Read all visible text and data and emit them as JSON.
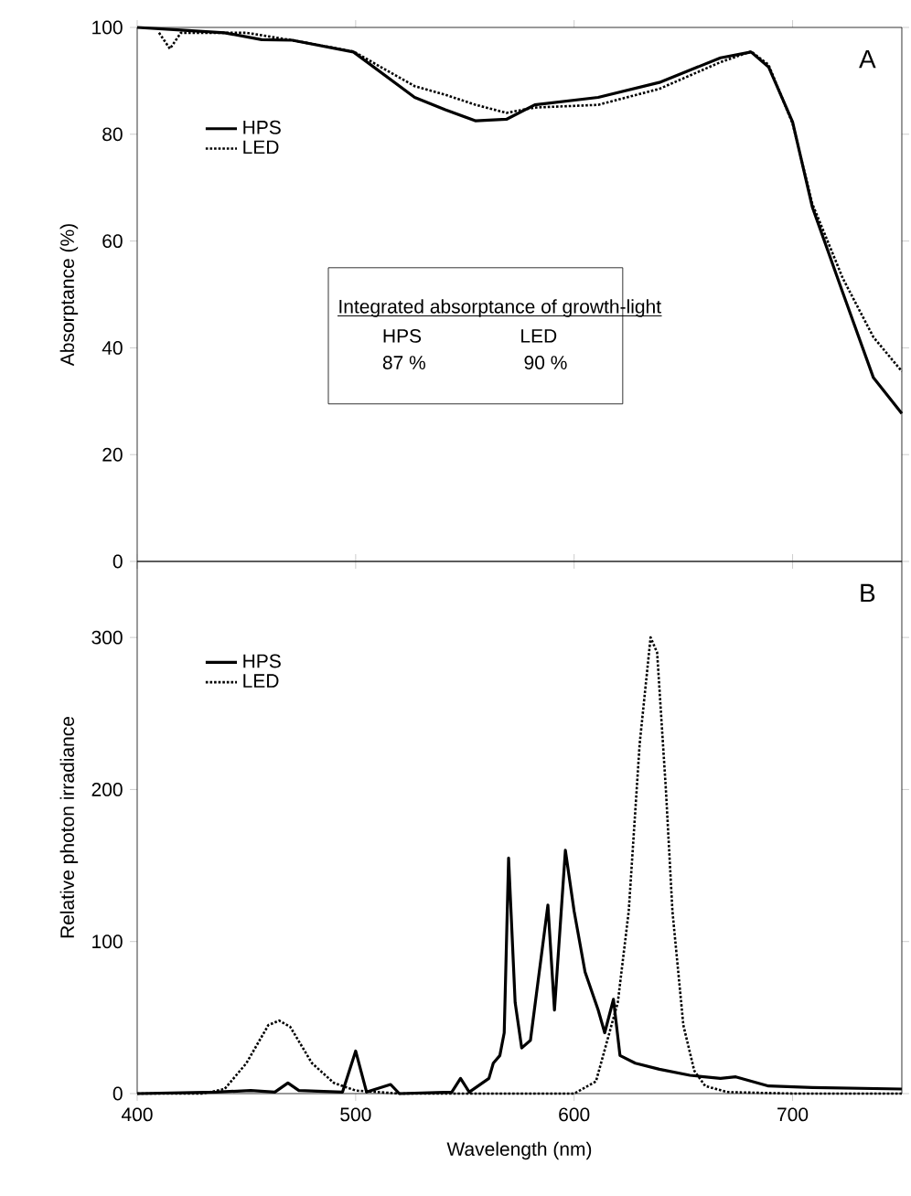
{
  "chart_data": [
    {
      "type": "line",
      "ylabel": "Absorptance (%)",
      "xlim": [
        400,
        750
      ],
      "xticks": [
        400,
        500,
        600,
        700
      ],
      "ylim": [
        0,
        100
      ],
      "yticks": [
        0,
        20,
        40,
        60,
        80,
        100
      ],
      "tick_labels": "y",
      "legend": "top left",
      "annotations": [
        "A",
        "Integrated absorptance of growth-light",
        "HPS",
        "LED",
        "87 %",
        "90 %"
      ],
      "series": [
        {
          "name": "HPS",
          "color": "#000000",
          "line_style": "solid",
          "x": [
            400,
            420,
            440,
            457,
            471,
            499,
            527,
            541,
            555,
            569,
            582,
            611,
            639,
            667,
            681,
            689,
            700,
            709,
            723,
            737,
            750
          ],
          "values": [
            100,
            99.5,
            99,
            97.7,
            97.6,
            95.4,
            86.9,
            84.6,
            82.5,
            82.8,
            85.5,
            86.9,
            89.7,
            94.3,
            95.4,
            92.6,
            82.3,
            66.4,
            50.3,
            34.4,
            27.7
          ]
        },
        {
          "name": "LED",
          "color": "#000000",
          "line_style": "dotted",
          "x": [
            410,
            415,
            420,
            450,
            471,
            499,
            527,
            541,
            555,
            569,
            582,
            611,
            639,
            667,
            681,
            689,
            700,
            709,
            723,
            737,
            750
          ],
          "values": [
            99,
            96,
            99,
            99,
            97.6,
            95.5,
            89,
            87.4,
            85.5,
            84,
            85,
            85.5,
            88.5,
            93.5,
            95.5,
            93,
            82,
            67,
            53,
            42,
            35.6
          ]
        }
      ]
    },
    {
      "type": "line",
      "xlabel": "Wavelength (nm)",
      "ylabel": "Relative photon irradiance",
      "xlim": [
        400,
        750
      ],
      "xticks": [
        400,
        500,
        600,
        700
      ],
      "ylim": [
        0,
        350
      ],
      "yticks": [
        0,
        100,
        200,
        300
      ],
      "legend": "top left",
      "annotations": [
        "B"
      ],
      "series": [
        {
          "name": "HPS",
          "color": "#000000",
          "line_style": "solid",
          "x": [
            400,
            436,
            452,
            463,
            469,
            474,
            494,
            500,
            505,
            516,
            520,
            544,
            548,
            552,
            561,
            563,
            566,
            568,
            570,
            573,
            576,
            580,
            588,
            591,
            596,
            600,
            605,
            611,
            614,
            618,
            621,
            628,
            639,
            653,
            667,
            674,
            689,
            709,
            750
          ],
          "values": [
            0,
            1,
            2,
            1,
            7,
            2,
            1,
            28,
            1,
            6,
            0,
            1,
            10,
            1,
            10,
            20,
            25,
            40,
            155,
            60,
            30,
            35,
            124,
            55,
            160,
            120,
            80,
            55,
            40,
            62,
            25,
            20,
            16,
            12,
            10,
            11,
            5,
            4,
            3
          ]
        },
        {
          "name": "LED",
          "color": "#000000",
          "line_style": "dotted",
          "x": [
            400,
            430,
            440,
            450,
            460,
            465,
            470,
            480,
            490,
            500,
            520,
            600,
            610,
            620,
            625,
            630,
            635,
            638,
            642,
            645,
            650,
            655,
            660,
            670,
            700,
            750
          ],
          "values": [
            0,
            0,
            3,
            20,
            45,
            48,
            44,
            20,
            7,
            2,
            0,
            0,
            8,
            60,
            120,
            230,
            300,
            290,
            200,
            120,
            45,
            15,
            5,
            1,
            0,
            0
          ]
        }
      ]
    }
  ]
}
